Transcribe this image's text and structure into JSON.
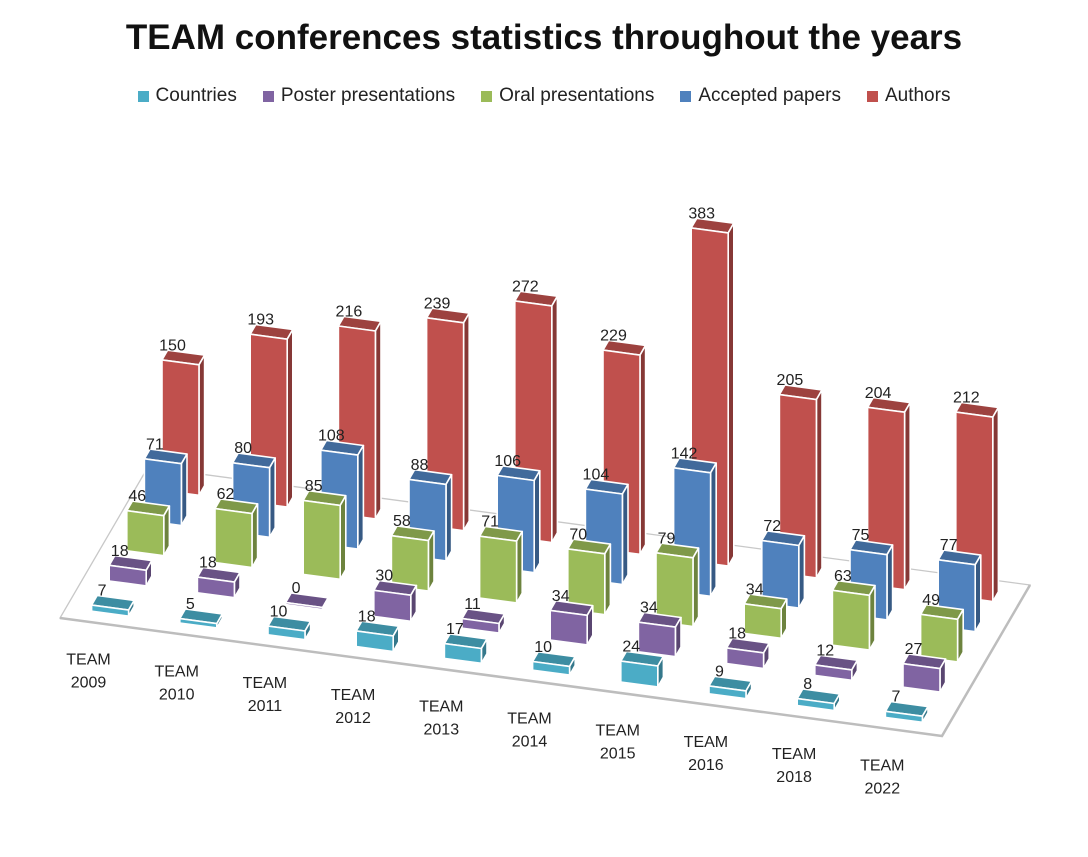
{
  "chart_data": {
    "type": "bar",
    "subtype": "3d-column",
    "title": "TEAM conferences statistics throughout the years",
    "legend_position": "top",
    "categories": [
      [
        "TEAM",
        "2009"
      ],
      [
        "TEAM",
        "2010"
      ],
      [
        "TEAM",
        "2011"
      ],
      [
        "TEAM",
        "2012"
      ],
      [
        "TEAM",
        "2013"
      ],
      [
        "TEAM",
        "2014"
      ],
      [
        "TEAM",
        "2015"
      ],
      [
        "TEAM",
        "2016"
      ],
      [
        "TEAM",
        "2018"
      ],
      [
        "TEAM",
        "2022"
      ]
    ],
    "series": [
      {
        "name": "Countries",
        "color": "#4BACC6",
        "values": [
          7,
          5,
          10,
          18,
          17,
          10,
          24,
          9,
          8,
          7
        ]
      },
      {
        "name": "Poster presentations",
        "color": "#8064A2",
        "values": [
          18,
          18,
          0,
          30,
          11,
          34,
          34,
          18,
          12,
          27
        ]
      },
      {
        "name": "Oral presentations",
        "color": "#9BBB59",
        "values": [
          46,
          62,
          85,
          58,
          71,
          70,
          79,
          34,
          63,
          49
        ]
      },
      {
        "name": "Accepted papers",
        "color": "#4F81BD",
        "values": [
          71,
          80,
          108,
          88,
          106,
          104,
          142,
          72,
          75,
          77
        ]
      },
      {
        "name": "Authors",
        "color": "#C0504D",
        "values": [
          150,
          193,
          216,
          239,
          272,
          229,
          383,
          205,
          204,
          212
        ]
      }
    ],
    "grid": false
  }
}
